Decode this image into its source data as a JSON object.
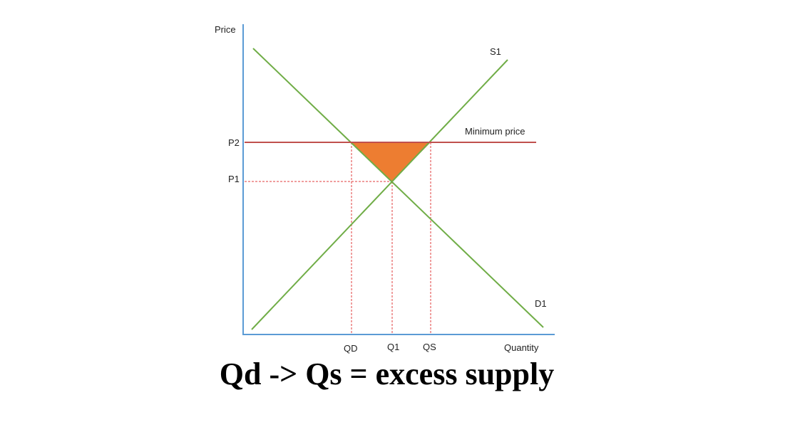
{
  "diagram": {
    "labels": {
      "price_axis": "Price",
      "quantity_axis": "Quantity",
      "supply_curve": "S1",
      "demand_curve": "D1",
      "minimum_price_line": "Minimum price",
      "p2": "P2",
      "p1": "P1",
      "qd": "QD",
      "q1": "Q1",
      "qs": "QS"
    },
    "colors": {
      "axis": "#5b9bd5",
      "curve": "#70ad47",
      "minimum_price": "#c0504d",
      "guide": "#e03c3c",
      "excess_supply_area": "#ed7d31"
    }
  },
  "caption": "Qd -> Qs = excess supply"
}
